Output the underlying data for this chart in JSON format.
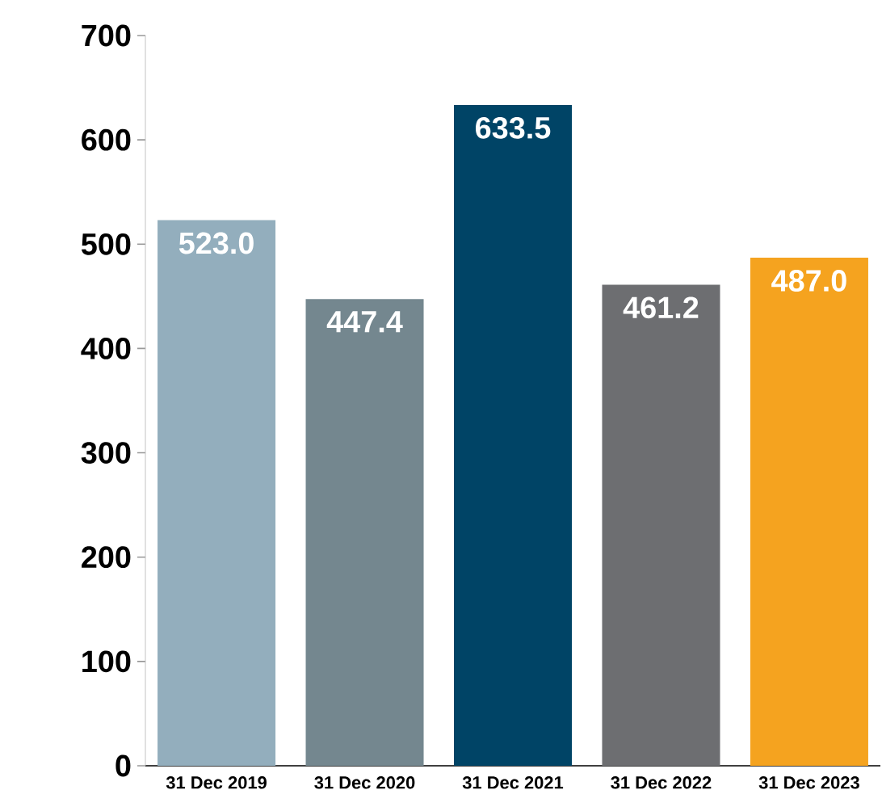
{
  "chart_data": {
    "type": "bar",
    "categories": [
      "31 Dec 2019",
      "31 Dec 2020",
      "31 Dec 2021",
      "31 Dec 2022",
      "31 Dec 2023"
    ],
    "values": [
      523.0,
      447.4,
      633.5,
      461.2,
      487.0
    ],
    "colors": [
      "#93aebd",
      "#74878f",
      "#004466",
      "#6d6e71",
      "#f5a31f"
    ],
    "value_labels": [
      "523.0",
      "447.4",
      "633.5",
      "461.2",
      "487.0"
    ],
    "ylim": [
      0,
      700
    ],
    "yticks": [
      0,
      100,
      200,
      300,
      400,
      500,
      600,
      700
    ],
    "grid": false
  }
}
